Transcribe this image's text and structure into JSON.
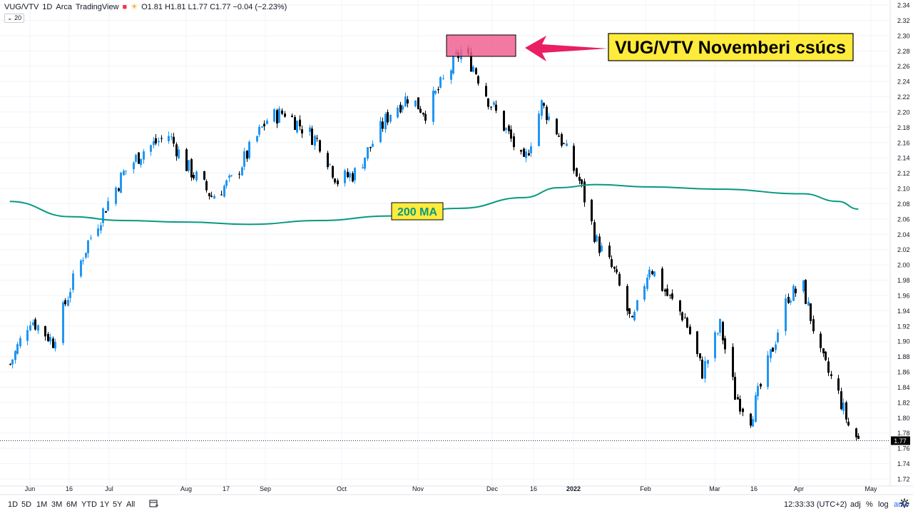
{
  "header": {
    "symbol": "VUG/VTV",
    "interval": "1D",
    "exchange": "Arca",
    "source": "TradingView",
    "ohlc": "O1.81 H1.81 L1.77 C1.77 −0.04 (−2.23%)",
    "volume_badge": "20"
  },
  "annotations": {
    "peak_label": "VUG/VTV Novemberi csúcs",
    "ma_label": "200 MA"
  },
  "bottom": {
    "timeframes": [
      "1D",
      "5D",
      "1M",
      "3M",
      "6M",
      "YTD",
      "1Y",
      "5Y",
      "All"
    ],
    "time": "12:33:33 (UTC+2)",
    "options": [
      "%",
      "log",
      "auto"
    ],
    "adj": "adj"
  },
  "colors": {
    "up": "#2196f3",
    "down": "#000000",
    "ma": "#089981",
    "highlight": "#f06292",
    "arrow": "#e91e63",
    "label_bg": "#ffeb3b"
  },
  "chart_data": {
    "type": "candlestick",
    "y_axis": {
      "min": 1.72,
      "max": 2.34,
      "ticks": [
        "2.34",
        "2.32",
        "2.30",
        "2.28",
        "2.26",
        "2.24",
        "2.22",
        "2.20",
        "2.18",
        "2.16",
        "2.14",
        "2.12",
        "2.10",
        "2.08",
        "2.06",
        "2.04",
        "2.02",
        "2.00",
        "1.98",
        "1.96",
        "1.94",
        "1.92",
        "1.90",
        "1.88",
        "1.86",
        "1.84",
        "1.82",
        "1.80",
        "1.78",
        "1.76",
        "1.74",
        "1.72"
      ]
    },
    "x_axis": {
      "ticks": [
        "Jun",
        "16",
        "Jul",
        "Aug",
        "17",
        "Sep",
        "Oct",
        "Nov",
        "Dec",
        "16",
        "2022",
        "Feb",
        "Mar",
        "16",
        "Apr",
        "May"
      ]
    },
    "last_price": "1.77",
    "series": [
      {
        "name": "VUG/VTV",
        "style": "candles",
        "start": "2021-05-24",
        "end": "2022-04-26",
        "close_points": [
          [
            "2021-05-24",
            1.87
          ],
          [
            "2021-06-01",
            1.93
          ],
          [
            "2021-06-10",
            1.9
          ],
          [
            "2021-06-17",
            1.97
          ],
          [
            "2021-06-24",
            2.03
          ],
          [
            "2021-06-30",
            2.07
          ],
          [
            "2021-07-08",
            2.12
          ],
          [
            "2021-07-16",
            2.15
          ],
          [
            "2021-07-26",
            2.17
          ],
          [
            "2021-08-02",
            2.13
          ],
          [
            "2021-08-12",
            2.09
          ],
          [
            "2021-08-20",
            2.11
          ],
          [
            "2021-08-27",
            2.15
          ],
          [
            "2021-09-03",
            2.19
          ],
          [
            "2021-09-10",
            2.2
          ],
          [
            "2021-09-17",
            2.18
          ],
          [
            "2021-09-24",
            2.16
          ],
          [
            "2021-10-01",
            2.11
          ],
          [
            "2021-10-08",
            2.12
          ],
          [
            "2021-10-15",
            2.16
          ],
          [
            "2021-10-22",
            2.2
          ],
          [
            "2021-10-29",
            2.22
          ],
          [
            "2021-11-05",
            2.2
          ],
          [
            "2021-11-12",
            2.24
          ],
          [
            "2021-11-19",
            2.28
          ],
          [
            "2021-11-24",
            2.26
          ],
          [
            "2021-12-01",
            2.21
          ],
          [
            "2021-12-08",
            2.17
          ],
          [
            "2021-12-14",
            2.13
          ],
          [
            "2021-12-21",
            2.21
          ],
          [
            "2021-12-28",
            2.17
          ],
          [
            "2022-01-05",
            2.11
          ],
          [
            "2022-01-12",
            2.03
          ],
          [
            "2022-01-19",
            1.99
          ],
          [
            "2022-01-26",
            1.92
          ],
          [
            "2022-02-02",
            2.0
          ],
          [
            "2022-02-09",
            1.96
          ],
          [
            "2022-02-16",
            1.93
          ],
          [
            "2022-02-23",
            1.86
          ],
          [
            "2022-03-02",
            1.92
          ],
          [
            "2022-03-08",
            1.83
          ],
          [
            "2022-03-14",
            1.8
          ],
          [
            "2022-03-21",
            1.87
          ],
          [
            "2022-03-29",
            1.96
          ],
          [
            "2022-04-04",
            1.97
          ],
          [
            "2022-04-11",
            1.88
          ],
          [
            "2022-04-18",
            1.83
          ],
          [
            "2022-04-22",
            1.79
          ],
          [
            "2022-04-26",
            1.77
          ]
        ]
      },
      {
        "name": "200 MA",
        "style": "line",
        "points": [
          [
            "2021-05-24",
            2.083
          ],
          [
            "2021-06-17",
            2.063
          ],
          [
            "2021-07-08",
            2.058
          ],
          [
            "2021-08-02",
            2.056
          ],
          [
            "2021-08-27",
            2.053
          ],
          [
            "2021-09-24",
            2.058
          ],
          [
            "2021-10-22",
            2.064
          ],
          [
            "2021-11-19",
            2.074
          ],
          [
            "2021-12-14",
            2.088
          ],
          [
            "2021-12-28",
            2.101
          ],
          [
            "2022-01-12",
            2.105
          ],
          [
            "2022-02-02",
            2.102
          ],
          [
            "2022-03-02",
            2.099
          ],
          [
            "2022-04-04",
            2.093
          ],
          [
            "2022-04-18",
            2.083
          ],
          [
            "2022-04-26",
            2.073
          ]
        ]
      }
    ]
  }
}
